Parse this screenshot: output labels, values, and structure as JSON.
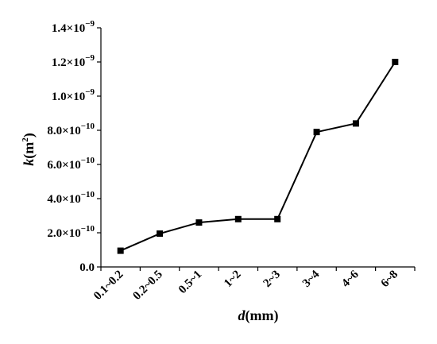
{
  "chart_data": {
    "type": "line",
    "xlabel_var": "d",
    "xlabel_unit": "(mm)",
    "ylabel_var": "k",
    "ylabel_unit": "(m",
    "ylabel_unit_exp": "2",
    "ylabel_unit_close": ")",
    "categories": [
      "0.1~0.2",
      "0.2~0.5",
      "0.5~1",
      "1~2",
      "2~3",
      "3~4",
      "4~6",
      "6~8"
    ],
    "values": [
      9.5e-11,
      1.95e-10,
      2.6e-10,
      2.8e-10,
      2.8e-10,
      7.9e-10,
      8.4e-10,
      1.2e-09
    ],
    "ylim": [
      0,
      1.4e-09
    ],
    "yticks": [
      {
        "value": 0,
        "mantissa": "0.0",
        "times": "",
        "base": "",
        "exp": ""
      },
      {
        "value": 2e-10,
        "mantissa": "2.0",
        "times": "×",
        "base": "10",
        "exp": "−10"
      },
      {
        "value": 4e-10,
        "mantissa": "4.0",
        "times": "×",
        "base": "10",
        "exp": "−10"
      },
      {
        "value": 6e-10,
        "mantissa": "6.0",
        "times": "×",
        "base": "10",
        "exp": "−10"
      },
      {
        "value": 8e-10,
        "mantissa": "8.0",
        "times": "×",
        "base": "10",
        "exp": "−10"
      },
      {
        "value": 1e-09,
        "mantissa": "1.0",
        "times": "×",
        "base": "10",
        "exp": "−9"
      },
      {
        "value": 1.2e-09,
        "mantissa": "1.2",
        "times": "×",
        "base": "10",
        "exp": "−9"
      },
      {
        "value": 1.4e-09,
        "mantissa": "1.4",
        "times": "×",
        "base": "10",
        "exp": "−9"
      }
    ],
    "grid": false,
    "legend": "none",
    "line_color": "#000000",
    "marker": "square"
  }
}
